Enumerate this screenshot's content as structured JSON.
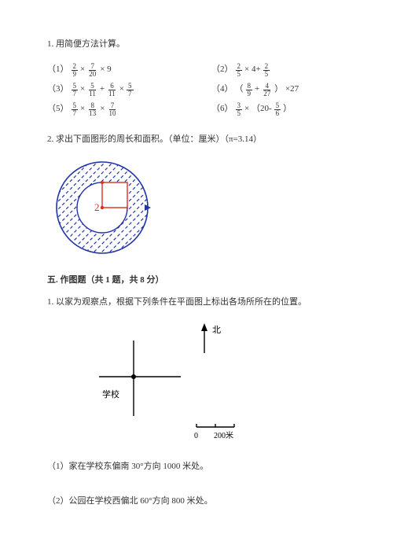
{
  "p1": {
    "title": "1. 用简便方法计算。",
    "items": [
      {
        "n": "（1）",
        "parts": [
          {
            "f": [
              2,
              9
            ]
          },
          " × ",
          {
            "f": [
              7,
              20
            ]
          },
          " × 9"
        ]
      },
      {
        "n": "（2）",
        "parts": [
          {
            "f": [
              2,
              5
            ]
          },
          " × 4+ ",
          {
            "f": [
              2,
              5
            ]
          }
        ]
      },
      {
        "n": "（3）",
        "parts": [
          {
            "f": [
              5,
              7
            ]
          },
          " × ",
          {
            "f": [
              5,
              11
            ]
          },
          " + ",
          {
            "f": [
              6,
              11
            ]
          },
          " × ",
          {
            "f": [
              5,
              7
            ]
          }
        ]
      },
      {
        "n": "（4）",
        "parts": [
          " （ ",
          {
            "f": [
              8,
              9
            ]
          },
          " + ",
          {
            "f": [
              4,
              27
            ]
          },
          " ） ×27"
        ]
      },
      {
        "n": "（5）",
        "parts": [
          {
            "f": [
              5,
              7
            ]
          },
          " × ",
          {
            "f": [
              8,
              13
            ]
          },
          " × ",
          {
            "f": [
              7,
              10
            ]
          }
        ]
      },
      {
        "n": "（6）",
        "parts": [
          {
            "f": [
              3,
              5
            ]
          },
          " × （20- ",
          {
            "f": [
              5,
              6
            ]
          },
          " ）"
        ]
      }
    ]
  },
  "p2": {
    "title": "2. 求出下面图形的周长和面积。（单位：厘米）（π=3.14）",
    "circle": {
      "outerRadius": 58,
      "square": {
        "side": 32,
        "label": "2"
      },
      "outerColor": "#2233aa",
      "hatchColor": "#2233aa",
      "squareColor": "#d83020",
      "labelColor": "#d83020",
      "dotColor": "#d83020"
    }
  },
  "section5": {
    "head": "五. 作图题（共 1 题，共 8 分）",
    "title": "1. 以家为观察点，根据下列条件在平面图上标出各场所所在的位置。",
    "plan": {
      "northLabel": "北",
      "schoolLabel": "学校",
      "scaleLabels": [
        "0",
        "200米"
      ]
    },
    "sub": [
      "（1）家在学校东偏南 30°方向 1000 米处。",
      "（2）公园在学校西偏北 60°方向 800 米处。"
    ]
  }
}
